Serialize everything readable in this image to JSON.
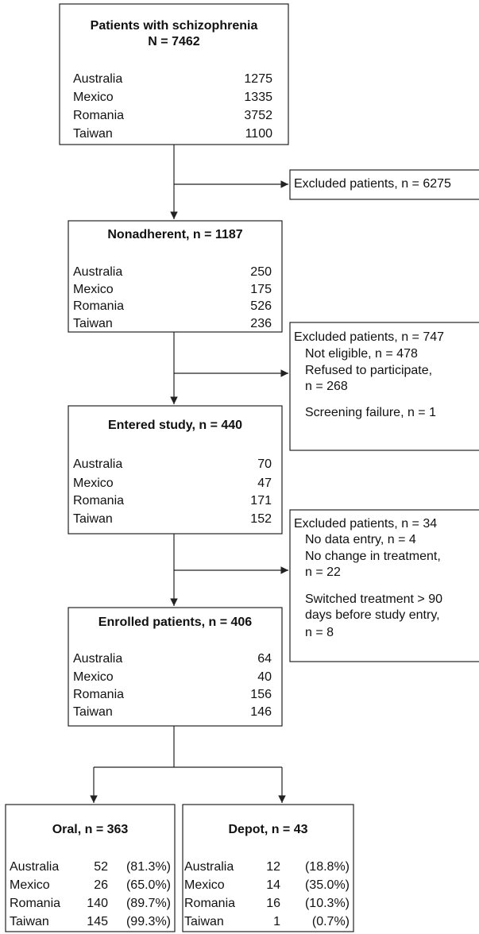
{
  "boxes": [
    {
      "title": [
        "Patients with schizophrenia",
        "N = 7462"
      ],
      "rows": [
        [
          "Australia",
          "1275"
        ],
        [
          "Mexico",
          "1335"
        ],
        [
          "Romania",
          "3752"
        ],
        [
          "Taiwan",
          "1100"
        ]
      ]
    },
    {
      "title": [
        "Nonadherent, n = 1187"
      ],
      "rows": [
        [
          "Australia",
          "250"
        ],
        [
          "Mexico",
          "175"
        ],
        [
          "Romania",
          "526"
        ],
        [
          "Taiwan",
          "236"
        ]
      ]
    },
    {
      "title": [
        "Entered study, n = 440"
      ],
      "rows": [
        [
          "Australia",
          "70"
        ],
        [
          "Mexico",
          "47"
        ],
        [
          "Romania",
          "171"
        ],
        [
          "Taiwan",
          "152"
        ]
      ]
    },
    {
      "title": [
        "Enrolled patients, n = 406"
      ],
      "rows": [
        [
          "Australia",
          "64"
        ],
        [
          "Mexico",
          "40"
        ],
        [
          "Romania",
          "156"
        ],
        [
          "Taiwan",
          "146"
        ]
      ]
    }
  ],
  "excluded": [
    {
      "lines": [
        "Excluded patients, n = 6275"
      ]
    },
    {
      "lines": [
        "Excluded patients, n = 747",
        "Not eligible, n = 478",
        "Refused to participate,",
        "n = 268",
        "Screening failure, n = 1"
      ]
    },
    {
      "lines": [
        "Excluded patients, n = 34",
        "No data entry, n = 4",
        "No change in treatment,",
        "n = 22",
        "Switched treatment > 90",
        "days before study entry,",
        "n = 8"
      ]
    }
  ],
  "arms": [
    {
      "title": "Oral, n = 363",
      "rows": [
        [
          "Australia",
          "52",
          "(81.3%)"
        ],
        [
          "Mexico",
          "26",
          "(65.0%)"
        ],
        [
          "Romania",
          "140",
          "(89.7%)"
        ],
        [
          "Taiwan",
          "145",
          "(99.3%)"
        ]
      ]
    },
    {
      "title": "Depot, n = 43",
      "rows": [
        [
          "Australia",
          "12",
          "(18.8%)"
        ],
        [
          "Mexico",
          "14",
          "(35.0%)"
        ],
        [
          "Romania",
          "16",
          "(10.3%)"
        ],
        [
          "Taiwan",
          "1",
          "(0.7%)"
        ]
      ]
    }
  ]
}
